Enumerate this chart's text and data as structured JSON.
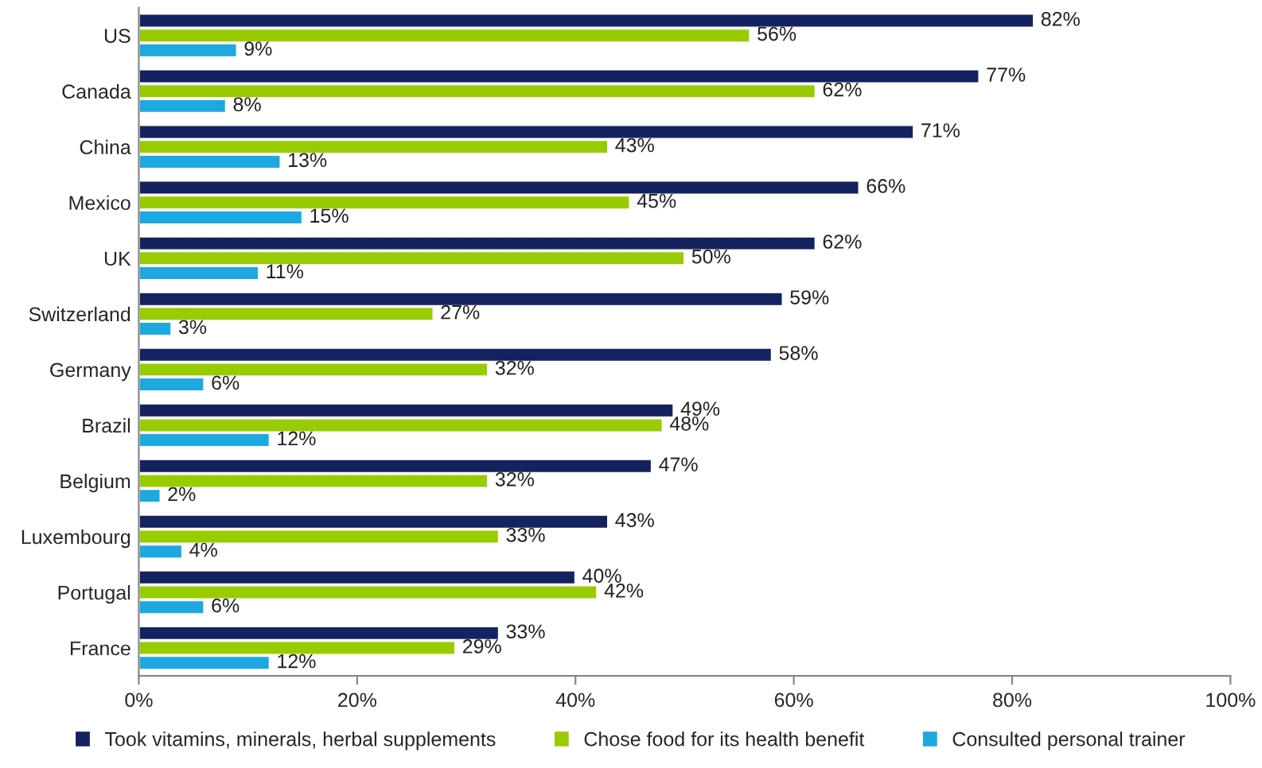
{
  "chart_data": {
    "type": "bar",
    "orientation": "horizontal",
    "categories": [
      "US",
      "Canada",
      "China",
      "Mexico",
      "UK",
      "Switzerland",
      "Germany",
      "Brazil",
      "Belgium",
      "Luxembourg",
      "Portugal",
      "France"
    ],
    "series": [
      {
        "name": "Took vitamins, minerals, herbal supplements",
        "color": "#14235f",
        "values": [
          82,
          77,
          71,
          66,
          62,
          59,
          58,
          49,
          47,
          43,
          40,
          33
        ],
        "value_labels": [
          "82%",
          "77%",
          "71%",
          "66%",
          "62%",
          "59%",
          "58%",
          "49%",
          "47%",
          "43%",
          "40%",
          "33%"
        ]
      },
      {
        "name": "Chose food for its health benefit",
        "color": "#99cc00",
        "values": [
          56,
          62,
          43,
          45,
          50,
          27,
          32,
          48,
          32,
          33,
          42,
          29
        ],
        "value_labels": [
          "56%",
          "62%",
          "43%",
          "45%",
          "50%",
          "27%",
          "32%",
          "48%",
          "32%",
          "33%",
          "42%",
          "29%"
        ]
      },
      {
        "name": "Consulted personal trainer",
        "color": "#1ea8e0",
        "values": [
          9,
          8,
          13,
          15,
          11,
          3,
          6,
          12,
          2,
          4,
          6,
          12
        ],
        "value_labels": [
          "9%",
          "8%",
          "13%",
          "15%",
          "11%",
          "3%",
          "6%",
          "12%",
          "2%",
          "4%",
          "6%",
          "12%"
        ]
      }
    ],
    "xlim": [
      0,
      100
    ],
    "xticks": [
      {
        "value": 0,
        "label": "0%"
      },
      {
        "value": 20,
        "label": "20%"
      },
      {
        "value": 40,
        "label": "40%"
      },
      {
        "value": 60,
        "label": "60%"
      },
      {
        "value": 80,
        "label": "80%"
      },
      {
        "value": 100,
        "label": "100%"
      }
    ],
    "grid": false,
    "legend": "bottom"
  }
}
